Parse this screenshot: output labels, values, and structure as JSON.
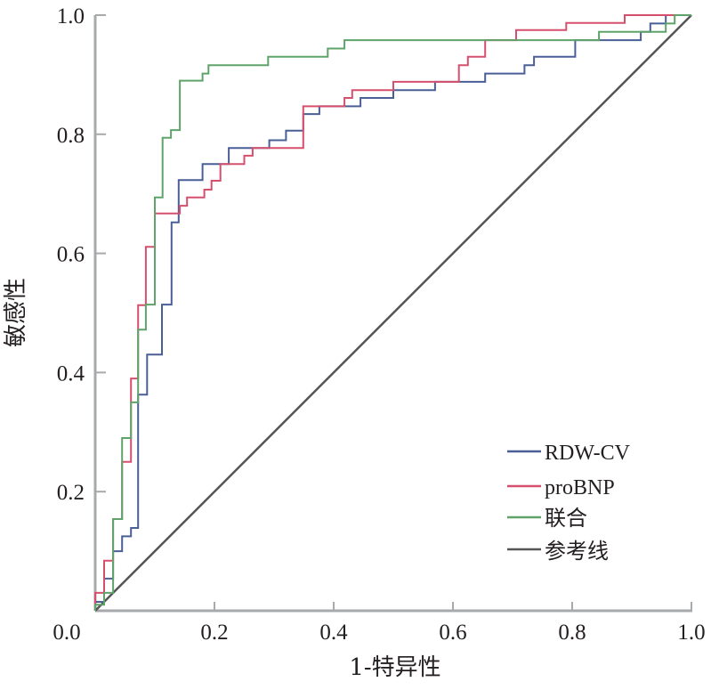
{
  "chart_data": {
    "type": "line",
    "title": "",
    "xlabel": "1-特异性",
    "ylabel": "敏感性",
    "xlim": [
      0,
      1
    ],
    "ylim": [
      0,
      1
    ],
    "grid": false,
    "legend_position": "bottom-right",
    "x_ticks": [
      "0.0",
      "0.2",
      "0.4",
      "0.6",
      "0.8",
      "1.0"
    ],
    "y_ticks": [
      "0.0",
      "0.2",
      "0.4",
      "0.6",
      "0.8",
      "1.0"
    ],
    "x_tick_values": [
      0,
      0.2,
      0.4,
      0.6,
      0.8,
      1.0
    ],
    "y_tick_values": [
      0,
      0.2,
      0.4,
      0.6,
      0.8,
      1.0
    ],
    "series": [
      {
        "name": "RDW-CV",
        "color": "#4a5f96",
        "step": true,
        "points": [
          [
            0,
            0
          ],
          [
            0,
            0.015
          ],
          [
            0.015,
            0.015
          ],
          [
            0.015,
            0.054
          ],
          [
            0.03,
            0.054
          ],
          [
            0.03,
            0.1
          ],
          [
            0.045,
            0.1
          ],
          [
            0.045,
            0.125
          ],
          [
            0.06,
            0.125
          ],
          [
            0.06,
            0.139
          ],
          [
            0.072,
            0.139
          ],
          [
            0.072,
            0.25
          ],
          [
            0.072,
            0.363
          ],
          [
            0.087,
            0.363
          ],
          [
            0.087,
            0.43
          ],
          [
            0.112,
            0.43
          ],
          [
            0.112,
            0.514
          ],
          [
            0.128,
            0.514
          ],
          [
            0.128,
            0.652
          ],
          [
            0.14,
            0.652
          ],
          [
            0.14,
            0.723
          ],
          [
            0.18,
            0.723
          ],
          [
            0.18,
            0.75
          ],
          [
            0.224,
            0.75
          ],
          [
            0.224,
            0.777
          ],
          [
            0.292,
            0.777
          ],
          [
            0.292,
            0.79
          ],
          [
            0.32,
            0.79
          ],
          [
            0.32,
            0.806
          ],
          [
            0.349,
            0.806
          ],
          [
            0.349,
            0.834
          ],
          [
            0.376,
            0.834
          ],
          [
            0.376,
            0.847
          ],
          [
            0.445,
            0.847
          ],
          [
            0.445,
            0.861
          ],
          [
            0.5,
            0.861
          ],
          [
            0.5,
            0.874
          ],
          [
            0.57,
            0.874
          ],
          [
            0.57,
            0.888
          ],
          [
            0.654,
            0.888
          ],
          [
            0.654,
            0.902
          ],
          [
            0.72,
            0.902
          ],
          [
            0.72,
            0.916
          ],
          [
            0.736,
            0.916
          ],
          [
            0.736,
            0.93
          ],
          [
            0.805,
            0.93
          ],
          [
            0.805,
            0.958
          ],
          [
            0.915,
            0.958
          ],
          [
            0.915,
            0.972
          ],
          [
            0.931,
            0.972
          ],
          [
            0.931,
            0.986
          ],
          [
            0.957,
            0.986
          ],
          [
            0.957,
            1.0
          ],
          [
            1.0,
            1.0
          ]
        ]
      },
      {
        "name": "proBNP",
        "color": "#d6506e",
        "step": true,
        "points": [
          [
            0,
            0
          ],
          [
            0,
            0.03
          ],
          [
            0.015,
            0.03
          ],
          [
            0.015,
            0.084
          ],
          [
            0.03,
            0.084
          ],
          [
            0.03,
            0.154
          ],
          [
            0.045,
            0.154
          ],
          [
            0.045,
            0.25
          ],
          [
            0.06,
            0.25
          ],
          [
            0.06,
            0.39
          ],
          [
            0.072,
            0.39
          ],
          [
            0.072,
            0.513
          ],
          [
            0.085,
            0.513
          ],
          [
            0.085,
            0.611
          ],
          [
            0.1,
            0.611
          ],
          [
            0.1,
            0.667
          ],
          [
            0.142,
            0.667
          ],
          [
            0.142,
            0.68
          ],
          [
            0.154,
            0.68
          ],
          [
            0.154,
            0.694
          ],
          [
            0.183,
            0.694
          ],
          [
            0.183,
            0.707
          ],
          [
            0.195,
            0.707
          ],
          [
            0.195,
            0.722
          ],
          [
            0.21,
            0.722
          ],
          [
            0.21,
            0.75
          ],
          [
            0.25,
            0.75
          ],
          [
            0.25,
            0.764
          ],
          [
            0.264,
            0.764
          ],
          [
            0.264,
            0.777
          ],
          [
            0.349,
            0.777
          ],
          [
            0.349,
            0.847
          ],
          [
            0.418,
            0.847
          ],
          [
            0.418,
            0.861
          ],
          [
            0.431,
            0.861
          ],
          [
            0.431,
            0.874
          ],
          [
            0.5,
            0.874
          ],
          [
            0.5,
            0.888
          ],
          [
            0.61,
            0.888
          ],
          [
            0.61,
            0.916
          ],
          [
            0.625,
            0.916
          ],
          [
            0.625,
            0.93
          ],
          [
            0.654,
            0.93
          ],
          [
            0.654,
            0.958
          ],
          [
            0.706,
            0.958
          ],
          [
            0.706,
            0.975
          ],
          [
            0.79,
            0.975
          ],
          [
            0.79,
            0.987
          ],
          [
            0.888,
            0.987
          ],
          [
            0.888,
            1.0
          ],
          [
            1.0,
            1.0
          ]
        ]
      },
      {
        "name": "联合",
        "color": "#5fa36a",
        "step": true,
        "points": [
          [
            0,
            0
          ],
          [
            0,
            0.01
          ],
          [
            0.015,
            0.01
          ],
          [
            0.015,
            0.03
          ],
          [
            0.03,
            0.03
          ],
          [
            0.03,
            0.154
          ],
          [
            0.045,
            0.154
          ],
          [
            0.045,
            0.29
          ],
          [
            0.06,
            0.29
          ],
          [
            0.06,
            0.35
          ],
          [
            0.072,
            0.35
          ],
          [
            0.072,
            0.472
          ],
          [
            0.085,
            0.472
          ],
          [
            0.085,
            0.514
          ],
          [
            0.1,
            0.514
          ],
          [
            0.1,
            0.694
          ],
          [
            0.113,
            0.694
          ],
          [
            0.113,
            0.794
          ],
          [
            0.127,
            0.794
          ],
          [
            0.127,
            0.807
          ],
          [
            0.142,
            0.807
          ],
          [
            0.142,
            0.89
          ],
          [
            0.18,
            0.89
          ],
          [
            0.18,
            0.902
          ],
          [
            0.19,
            0.902
          ],
          [
            0.19,
            0.916
          ],
          [
            0.29,
            0.916
          ],
          [
            0.29,
            0.93
          ],
          [
            0.39,
            0.93
          ],
          [
            0.39,
            0.944
          ],
          [
            0.418,
            0.944
          ],
          [
            0.418,
            0.958
          ],
          [
            0.845,
            0.958
          ],
          [
            0.845,
            0.972
          ],
          [
            0.957,
            0.972
          ],
          [
            0.957,
            0.986
          ],
          [
            0.972,
            0.986
          ],
          [
            0.972,
            1.0
          ],
          [
            1.0,
            1.0
          ]
        ]
      },
      {
        "name": "参考线",
        "color": "#555555",
        "step": false,
        "points": [
          [
            0,
            0
          ],
          [
            1,
            1
          ]
        ]
      }
    ]
  }
}
